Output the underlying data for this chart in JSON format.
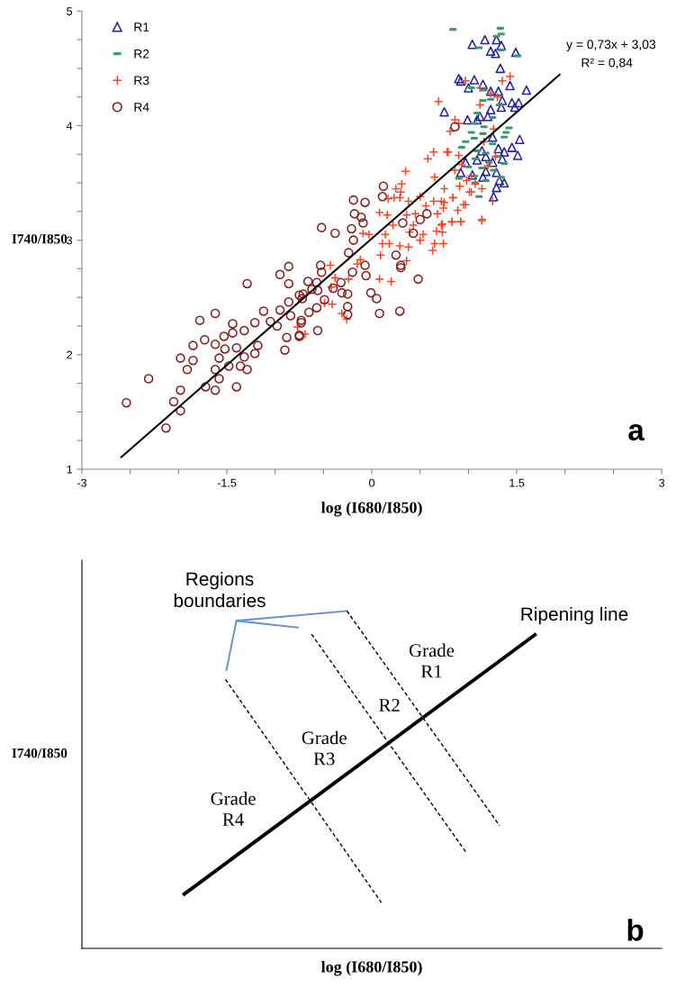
{
  "chart_data": [
    {
      "type": "scatter",
      "xlabel": "log (I680/I850)",
      "ylabel": "I740/I850",
      "legend": "top left",
      "grid": false,
      "xlim": [
        -3,
        3
      ],
      "ylim": [
        1,
        5
      ],
      "xticks": [
        -3,
        {
          "value": -2.5,
          "label": null
        },
        {
          "value": -2,
          "label": null
        },
        -1.5,
        {
          "value": -1,
          "label": null
        },
        {
          "value": -0.5,
          "label": null
        },
        0,
        {
          "value": 0.5,
          "label": null
        },
        {
          "value": 1,
          "label": null
        },
        1.5,
        {
          "value": 2,
          "label": null
        },
        {
          "value": 2.5,
          "label": null
        },
        3
      ],
      "yticks": [
        1,
        {
          "value": 1.25,
          "label": null
        },
        {
          "value": 1.5,
          "label": null
        },
        {
          "value": 1.75,
          "label": null
        },
        2,
        {
          "value": 2.25,
          "label": null
        },
        {
          "value": 2.5,
          "label": null
        },
        {
          "value": 2.75,
          "label": null
        },
        3,
        {
          "value": 3.25,
          "label": null
        },
        {
          "value": 3.5,
          "label": null
        },
        {
          "value": 3.75,
          "label": null
        },
        4,
        {
          "value": 4.25,
          "label": null
        },
        {
          "value": 4.5,
          "label": null
        },
        {
          "value": 4.75,
          "label": null
        },
        5
      ],
      "annotations": [
        "y = 0,73x + 3,03",
        "R² = 0,84",
        "a"
      ],
      "series": [
        {
          "name": "R1",
          "type": "scatter",
          "marker": "triangle",
          "color": "#2222aa",
          "x": [
            1.04,
            1.17,
            1.29,
            1.23,
            1.28,
            1.34,
            1.49,
            1.33,
            0.9,
            0.92,
            1.06,
            1.15,
            1.0,
            1.43,
            1.6,
            1.23,
            1.31,
            1.35,
            1.45,
            1.52,
            1.48,
            0.75,
            1.23,
            1.34,
            0.99,
            1.12,
            1.2,
            1.09,
            1.25,
            1.53,
            1.45,
            1.51,
            1.37,
            1.31,
            1.14,
            1.18,
            1.35,
            1.09,
            1.25,
            0.92,
            1.04,
            1.15,
            1.18,
            1.29,
            1.32,
            1.37,
            1.29,
            1.26,
            0.97
          ],
          "values": [
            4.71,
            4.75,
            4.75,
            4.65,
            4.63,
            4.7,
            4.64,
            4.5,
            4.41,
            4.39,
            4.4,
            4.36,
            4.33,
            4.35,
            4.31,
            4.3,
            4.3,
            4.22,
            4.2,
            4.2,
            4.16,
            4.12,
            4.14,
            4.16,
            4.05,
            4.08,
            4.08,
            4.05,
            3.9,
            3.88,
            3.81,
            3.74,
            3.77,
            3.8,
            3.78,
            3.73,
            3.71,
            3.7,
            3.68,
            3.59,
            3.57,
            3.55,
            3.6,
            3.59,
            3.52,
            3.5,
            3.46,
            3.38,
            3.68
          ]
        },
        {
          "name": "R2",
          "type": "scatter",
          "color": "#3a9a6a",
          "x": [
            0.84,
            1.33,
            1.34,
            1.29,
            1.11,
            1.34,
            1.51,
            1.03,
            1.16,
            1.23,
            1.15,
            1.32,
            1.09,
            1.25,
            1.06,
            1.16,
            1.42,
            1.03,
            1.39,
            1.15,
            0.97,
            1.06,
            1.37,
            1.25,
            1.09,
            1.18,
            1.3,
            1.07,
            1.21,
            1.37,
            1.0,
            1.14,
            1.26,
            1.06,
            0.9,
            1.34,
            1.07,
            1.18,
            1.11,
            0.93
          ],
          "values": [
            4.84,
            4.85,
            4.8,
            4.78,
            4.68,
            4.66,
            4.61,
            4.33,
            4.31,
            4.23,
            4.22,
            4.18,
            4.11,
            4.07,
            4.02,
            3.99,
            3.98,
            3.94,
            3.94,
            3.93,
            3.86,
            3.89,
            3.9,
            3.84,
            3.78,
            3.76,
            3.73,
            3.71,
            3.68,
            3.67,
            3.64,
            3.63,
            3.61,
            3.56,
            3.54,
            3.55,
            3.5,
            3.52,
            3.38,
            3.81
          ]
        },
        {
          "name": "R3",
          "type": "scatter",
          "marker": "cross",
          "color": "#ff4422",
          "x": [
            0.64,
            0.79,
            0.58,
            0.35,
            0.31,
            0.25,
            0.3,
            0.17,
            0.23,
            0.29,
            0.38,
            0.5,
            0.65,
            0.75,
            0.84,
            0.56,
            0.64,
            0.72,
            0.74,
            0.68,
            0.95,
            0.91,
            1.01,
            1.14,
            0.92,
            0.83,
            0.73,
            0.67,
            0.73,
            0.5,
            0.53,
            0.39,
            0.36,
            0.45,
            0.43,
            0.16,
            0.08,
            0.22,
            0.14,
            -0.09,
            -0.03,
            0.11,
            0.18,
            0.29,
            0.38,
            0.65,
            0.74,
            0.63,
            0.09,
            0.36,
            -0.12,
            -0.15,
            -0.43,
            -0.24,
            -0.38,
            0.08,
            0.2,
            -0.42,
            -0.49,
            -0.41,
            -0.31,
            -0.26,
            -0.77,
            -0.69,
            0.69,
            1.43,
            1.35,
            0.97,
            0.86,
            0.81,
            0.9,
            0.78,
            0.9,
            0.93,
            0.86,
            1.03,
            0.98,
            1.07,
            1.14,
            0.75,
            0.84,
            0.97,
            1.03,
            1.25,
            1.14,
            0.89,
            0.92,
            0.83,
            0.72,
            1.2,
            1.12,
            1.23,
            1.3,
            1.12,
            1.26,
            1.16,
            1.28
          ],
          "values": [
            3.77,
            3.77,
            3.71,
            3.6,
            3.49,
            3.45,
            3.42,
            3.36,
            3.37,
            3.37,
            3.34,
            3.38,
            3.55,
            3.45,
            3.37,
            3.3,
            3.34,
            3.34,
            3.28,
            3.23,
            3.31,
            3.47,
            3.42,
            3.18,
            3.16,
            3.16,
            3.14,
            3.08,
            3.07,
            3.0,
            3.05,
            3.07,
            3.22,
            3.23,
            3.13,
            3.22,
            3.24,
            3.13,
            3.05,
            3.06,
            3.05,
            2.97,
            2.97,
            2.95,
            2.94,
            2.97,
            2.97,
            2.91,
            2.87,
            2.82,
            2.83,
            2.79,
            2.78,
            2.66,
            2.67,
            2.66,
            2.64,
            2.59,
            2.45,
            2.44,
            2.36,
            2.31,
            2.24,
            2.18,
            4.21,
            4.43,
            4.39,
            4.39,
            4.05,
            3.95,
            4.02,
            3.77,
            3.74,
            3.66,
            3.61,
            3.56,
            3.52,
            3.49,
            3.45,
            3.33,
            3.37,
            3.31,
            3.42,
            3.34,
            3.17,
            3.26,
            3.16,
            3.16,
            3.13,
            3.65,
            4.33,
            4.28,
            4.25,
            4.18,
            3.97,
            3.86,
            3.73
          ]
        },
        {
          "name": "R4",
          "type": "scatter",
          "marker": "circle",
          "color": "#8b1a1a",
          "x": [
            -2.54,
            -2.31,
            -2.13,
            -2.05,
            -1.98,
            -1.98,
            -1.98,
            -1.91,
            -1.85,
            -1.85,
            -1.78,
            -1.73,
            -1.72,
            -1.62,
            -1.62,
            -1.62,
            -1.62,
            -1.58,
            -1.58,
            -1.53,
            -1.52,
            -1.48,
            -1.44,
            -1.44,
            -1.4,
            -1.4,
            -1.36,
            -1.32,
            -1.32,
            -1.29,
            -1.29,
            -1.21,
            -1.21,
            -1.18,
            -1.12,
            -1.05,
            -0.98,
            -0.95,
            -0.95,
            -0.9,
            -0.88,
            -0.86,
            -0.86,
            -0.86,
            -0.84,
            -0.75,
            -0.73,
            -0.71,
            -0.52,
            -0.38,
            -0.19,
            -0.07,
            -0.18,
            -0.11,
            -0.09,
            -0.21,
            -0.19,
            -0.24,
            0.12,
            0.11,
            0.57,
            0.5,
            0.32,
            0.43,
            0.25,
            0.3,
            0.3,
            0.48,
            0.29,
            0.08,
            0.05,
            -0.01,
            -0.06,
            -0.07,
            -0.2,
            -0.32,
            -0.25,
            -0.31,
            -0.25,
            -0.25,
            -0.4,
            -0.49,
            -0.53,
            -0.52,
            -0.66,
            -0.57,
            -0.56,
            -0.62,
            -0.75,
            -0.72,
            -0.57,
            -0.65,
            -0.56,
            -0.73,
            -0.75,
            0.86
          ],
          "values": [
            1.58,
            1.79,
            1.36,
            1.59,
            1.51,
            1.69,
            1.97,
            1.87,
            2.08,
            1.95,
            2.3,
            2.13,
            1.72,
            2.36,
            2.09,
            1.87,
            1.69,
            1.97,
            1.79,
            2.16,
            2.05,
            1.9,
            2.27,
            2.19,
            2.06,
            1.72,
            1.9,
            2.21,
            1.98,
            2.62,
            1.87,
            2.28,
            2.01,
            2.08,
            2.38,
            2.29,
            2.25,
            2.7,
            2.39,
            2.04,
            2.15,
            2.77,
            2.62,
            2.46,
            2.34,
            2.16,
            2.3,
            2.53,
            3.11,
            3.06,
            3.35,
            3.33,
            3.23,
            3.2,
            3.15,
            3.1,
            3.0,
            2.89,
            3.47,
            3.38,
            3.23,
            3.18,
            3.15,
            3.06,
            2.87,
            2.78,
            2.76,
            2.66,
            2.38,
            2.36,
            2.49,
            2.54,
            2.69,
            2.78,
            2.72,
            2.63,
            2.53,
            2.54,
            2.42,
            2.35,
            2.58,
            2.48,
            2.78,
            2.72,
            2.64,
            2.63,
            2.56,
            2.57,
            2.52,
            2.49,
            2.41,
            2.37,
            2.21,
            2.28,
            2.17,
            3.99
          ]
        },
        {
          "type": "line",
          "color": "#000000",
          "x": [
            -2.6,
            1.95
          ],
          "values": [
            1.1,
            4.45
          ]
        }
      ]
    },
    {
      "type": "other",
      "xlabel": "log (I680/I850)",
      "ylabel": "I740/I850",
      "annotations": [
        "Regions\nboundaries",
        "Ripening line",
        "Grade\nR1",
        "R2",
        "Grade\nR3",
        "Grade\nR4",
        "b"
      ]
    }
  ]
}
